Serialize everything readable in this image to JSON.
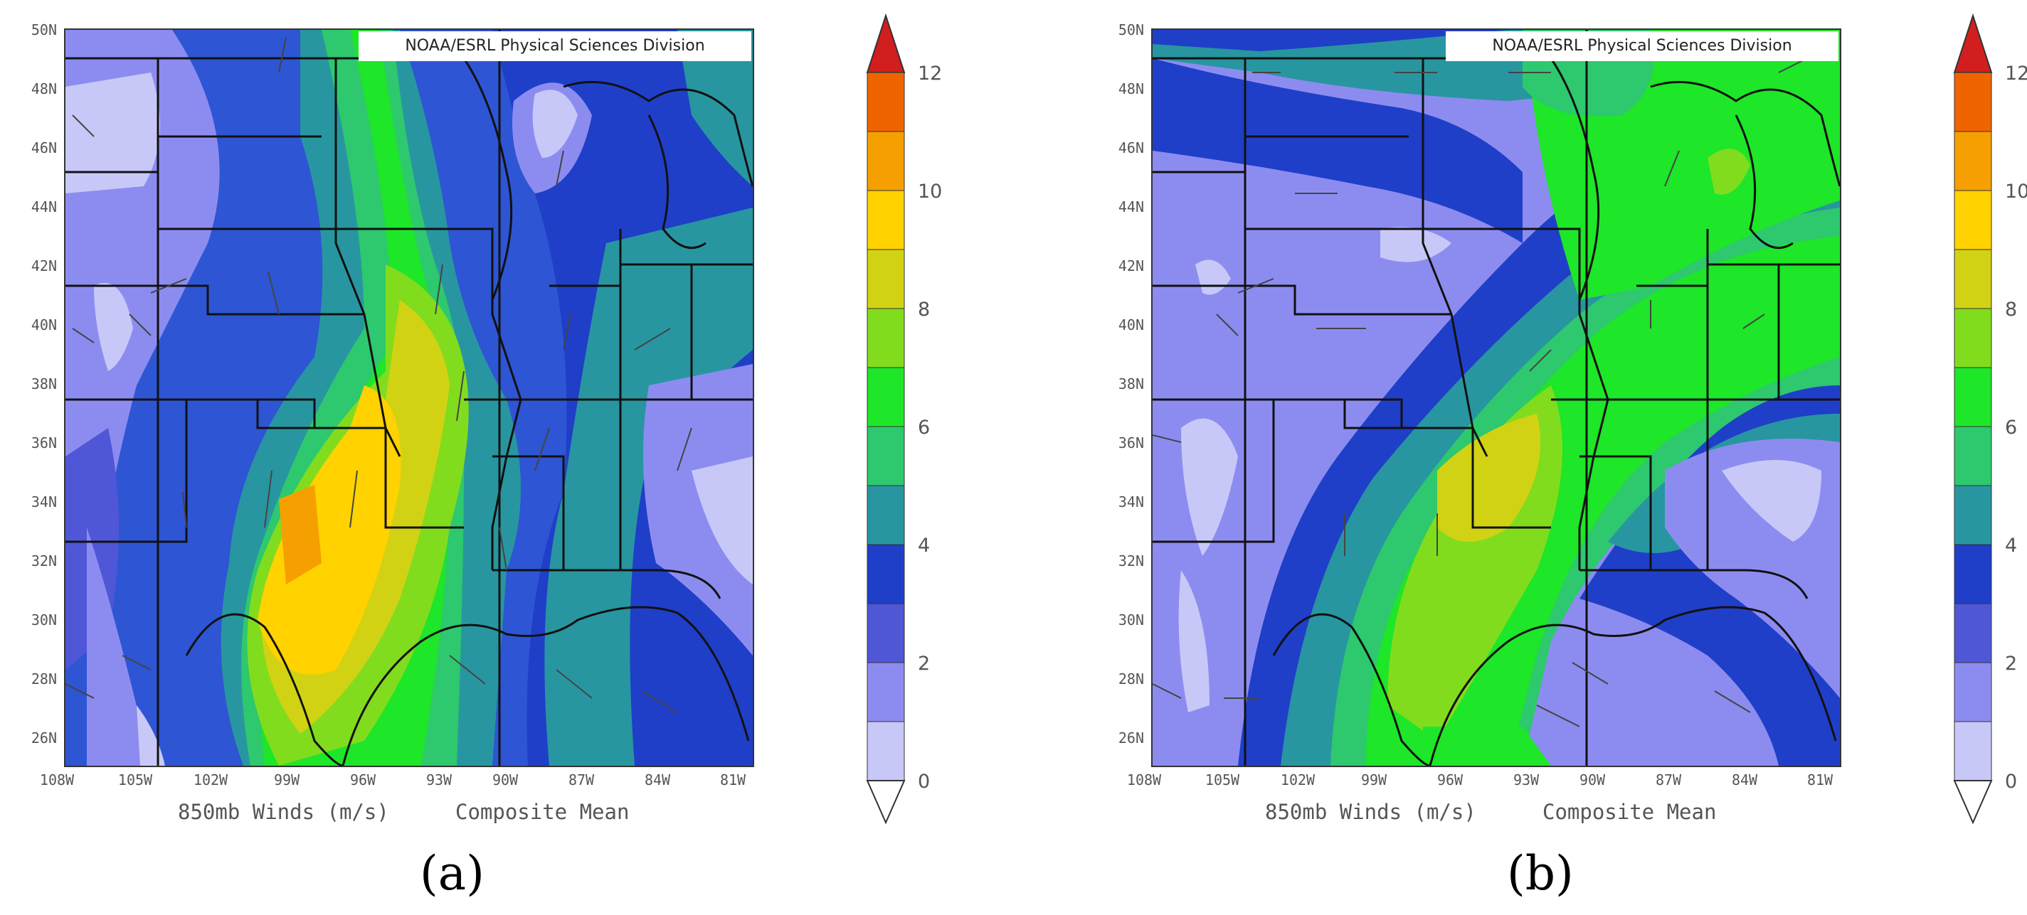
{
  "panels": [
    {
      "id": "a",
      "label": "(a)",
      "credit": "NOAA/ESRL Physical Sciences Division",
      "variable": "850mb Winds (m/s)",
      "stat": "Composite Mean",
      "max_speed_region": "north-central Texas (10–12 m/s)"
    },
    {
      "id": "b",
      "label": "(b)",
      "credit": "NOAA/ESRL Physical Sciences Division",
      "variable": "850mb Winds (m/s)",
      "stat": "Composite Mean",
      "max_speed_region": "Oklahoma/north Texas (8–10 m/s)"
    }
  ],
  "axes": {
    "lat_ticks": [
      "50N",
      "48N",
      "46N",
      "44N",
      "42N",
      "40N",
      "38N",
      "36N",
      "34N",
      "32N",
      "30N",
      "28N",
      "26N"
    ],
    "lon_ticks": [
      "108W",
      "105W",
      "102W",
      "99W",
      "96W",
      "93W",
      "90W",
      "87W",
      "84W",
      "81W"
    ]
  },
  "colorbar": {
    "ticks": [
      "0",
      "2",
      "4",
      "6",
      "8",
      "10",
      "12"
    ],
    "levels": [
      {
        "range": "0-1",
        "color": "#c8c8f8"
      },
      {
        "range": "1-2",
        "color": "#8c8cf0"
      },
      {
        "range": "2-3",
        "color": "#4f57d6"
      },
      {
        "range": "3-4",
        "color": "#1f3fc8"
      },
      {
        "range": "4-5",
        "color": "#2896a0"
      },
      {
        "range": "5-6",
        "color": "#2ec86e"
      },
      {
        "range": "6-7",
        "color": "#1ee628"
      },
      {
        "range": "7-8",
        "color": "#82dc1e"
      },
      {
        "range": "8-9",
        "color": "#d2d214"
      },
      {
        "range": "9-10",
        "color": "#ffd200"
      },
      {
        "range": "10-11",
        "color": "#f5a000"
      },
      {
        "range": "11-12",
        "color": "#f06400"
      },
      {
        "range": ">12",
        "color": "#d21e1e"
      }
    ]
  }
}
